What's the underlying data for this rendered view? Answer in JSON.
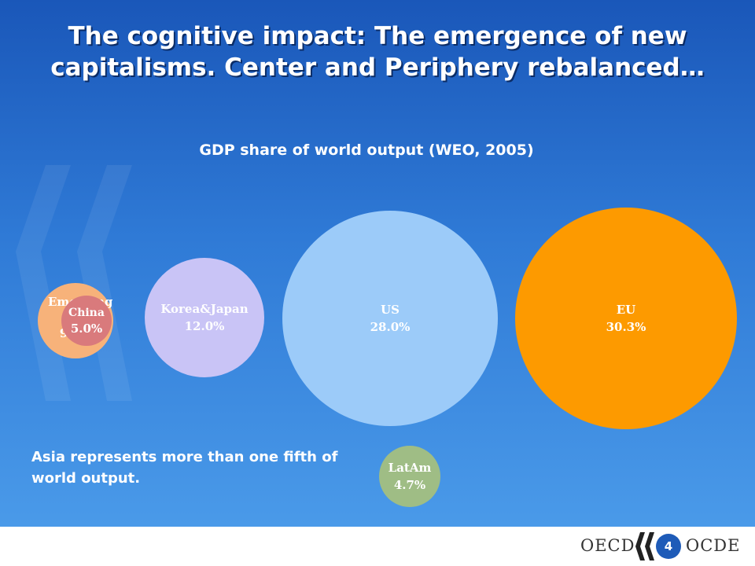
{
  "title": {
    "line1": "The cognitive impact: The emergence of new",
    "line2": "capitalisms. Center and Periphery rebalanced…"
  },
  "subtitle": "GDP share of world output (WEO, 2005)",
  "bubbles": [
    {
      "id": "emerging-asia",
      "label": "Emerging Asia",
      "value": "9.1%",
      "share": 9.1,
      "color": "#f7b27a"
    },
    {
      "id": "china",
      "label": "China",
      "value": "5.0%",
      "share": 5.0,
      "color": "#d97a7c"
    },
    {
      "id": "korea-japan",
      "label": "Korea&Japan",
      "value": "12.0%",
      "share": 12.0,
      "color": "#c9c4f6"
    },
    {
      "id": "us",
      "label": "US",
      "value": "28.0%",
      "share": 28.0,
      "color": "#9ccbf9"
    },
    {
      "id": "eu",
      "label": "EU",
      "value": "30.3%",
      "share": 30.3,
      "color": "#fd9a00"
    },
    {
      "id": "latam",
      "label": "LatAm",
      "value": "4.7%",
      "share": 4.7,
      "color": "#9fbd85"
    }
  ],
  "note": "Asia represents more than one fifth of world output.",
  "footer": {
    "logo_left": "OECD",
    "logo_right": "OCDE",
    "page_number": "4",
    "brand_color": "#1e5bb8"
  }
}
